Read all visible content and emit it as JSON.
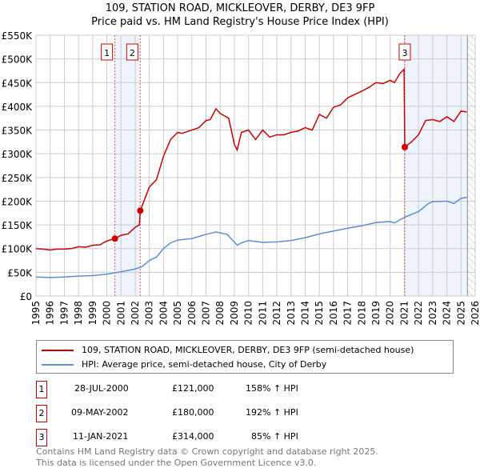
{
  "chart_data": {
    "type": "line",
    "title": "109, STATION ROAD, MICKLEOVER, DERBY, DE3 9FP",
    "subtitle": "Price paid vs. HM Land Registry's House Price Index (HPI)",
    "xlim": [
      1995,
      2026
    ],
    "ylim": [
      0,
      550000
    ],
    "y_ticks": [
      0,
      50000,
      100000,
      150000,
      200000,
      250000,
      300000,
      350000,
      400000,
      450000,
      500000,
      550000
    ],
    "y_tick_labels": [
      "£0",
      "£50K",
      "£100K",
      "£150K",
      "£200K",
      "£250K",
      "£300K",
      "£350K",
      "£400K",
      "£450K",
      "£500K",
      "£550K"
    ],
    "x_ticks": [
      "1995",
      "1996",
      "1997",
      "1998",
      "1999",
      "2000",
      "2001",
      "2002",
      "2003",
      "2004",
      "2005",
      "2006",
      "2007",
      "2008",
      "2009",
      "2010",
      "2011",
      "2012",
      "2013",
      "2014",
      "2015",
      "2016",
      "2017",
      "2018",
      "2019",
      "2020",
      "2021",
      "2022",
      "2023",
      "2024",
      "2025",
      "2026"
    ],
    "grid": true,
    "series": [
      {
        "name": "109, STATION ROAD, MICKLEOVER, DERBY, DE3 9FP (semi-detached house)",
        "color": "#cc0000",
        "x": [
          1995,
          1995.5,
          1996,
          1996.5,
          1997,
          1997.5,
          1998,
          1998.5,
          1999,
          1999.5,
          2000,
          2000.57,
          2001,
          2001.5,
          2002,
          2002.3,
          2002.36,
          2003,
          2003.5,
          2004,
          2004.5,
          2005,
          2005.3,
          2006,
          2006.5,
          2007,
          2007.3,
          2007.7,
          2008,
          2008.6,
          2009,
          2009.2,
          2009.5,
          2010,
          2010.5,
          2011,
          2011.5,
          2012,
          2012.5,
          2013,
          2013.5,
          2014,
          2014.5,
          2015,
          2015.5,
          2016,
          2016.5,
          2017,
          2017.5,
          2018,
          2018.5,
          2019,
          2019.5,
          2020,
          2020.3,
          2020.7,
          2020.98,
          2021.03,
          2021.5,
          2022,
          2022.5,
          2023,
          2023.5,
          2024,
          2024.5,
          2025,
          2025.4
        ],
        "y": [
          100000,
          99000,
          97000,
          99000,
          99000,
          100000,
          104000,
          103000,
          107000,
          108000,
          116000,
          121000,
          128000,
          131000,
          145000,
          150000,
          180000,
          230000,
          245000,
          295000,
          330000,
          345000,
          343000,
          350000,
          355000,
          370000,
          372000,
          395000,
          385000,
          375000,
          320000,
          308000,
          345000,
          350000,
          330000,
          350000,
          335000,
          340000,
          340000,
          345000,
          348000,
          355000,
          350000,
          383000,
          375000,
          398000,
          403000,
          418000,
          425000,
          432000,
          440000,
          450000,
          448000,
          455000,
          450000,
          470000,
          478000,
          314000,
          325000,
          340000,
          370000,
          372000,
          368000,
          378000,
          368000,
          390000,
          388000
        ]
      },
      {
        "name": "HPI: Average price, semi-detached house, City of Derby",
        "color": "#5b8fd4",
        "x": [
          1995,
          1996,
          1997,
          1998,
          1999,
          2000,
          2001,
          2002,
          2002.5,
          2003,
          2003.5,
          2004,
          2004.5,
          2005,
          2006,
          2007,
          2007.7,
          2008.5,
          2009.2,
          2009.5,
          2010,
          2011,
          2012,
          2013,
          2014,
          2015,
          2016,
          2017,
          2018,
          2019,
          2020,
          2020.3,
          2021,
          2022,
          2022.7,
          2023,
          2024,
          2024.5,
          2025,
          2025.4
        ],
        "y": [
          40000,
          39000,
          40000,
          42000,
          43000,
          46000,
          51000,
          57000,
          62000,
          75000,
          82000,
          100000,
          112000,
          118000,
          121000,
          130000,
          135000,
          130000,
          107000,
          112000,
          117000,
          113000,
          114000,
          117000,
          123000,
          131000,
          137000,
          143000,
          148000,
          155000,
          157000,
          154000,
          166000,
          178000,
          195000,
          199000,
          200000,
          195000,
          206000,
          208000
        ]
      }
    ],
    "transactions": [
      {
        "label": "1",
        "x": 2000.57,
        "price": 121000,
        "date": "28-JUL-2000",
        "price_text": "£121,000",
        "hpi": "158% ↑ HPI"
      },
      {
        "label": "2",
        "x": 2002.36,
        "price": 180000,
        "date": "09-MAY-2002",
        "price_text": "£180,000",
        "hpi": "192% ↑ HPI"
      },
      {
        "label": "3",
        "x": 2021.03,
        "price": 314000,
        "date": "11-JAN-2021",
        "price_text": "£314,000",
        "hpi": "85% ↑ HPI"
      }
    ],
    "shaded_ranges": [
      [
        2000.57,
        2002.36
      ],
      [
        2021.03,
        2025.45
      ]
    ],
    "forecast_from": 2025.45
  },
  "footer": [
    "Contains HM Land Registry data © Crown copyright and database right 2025.",
    "This data is licensed under the Open Government Licence v3.0."
  ]
}
